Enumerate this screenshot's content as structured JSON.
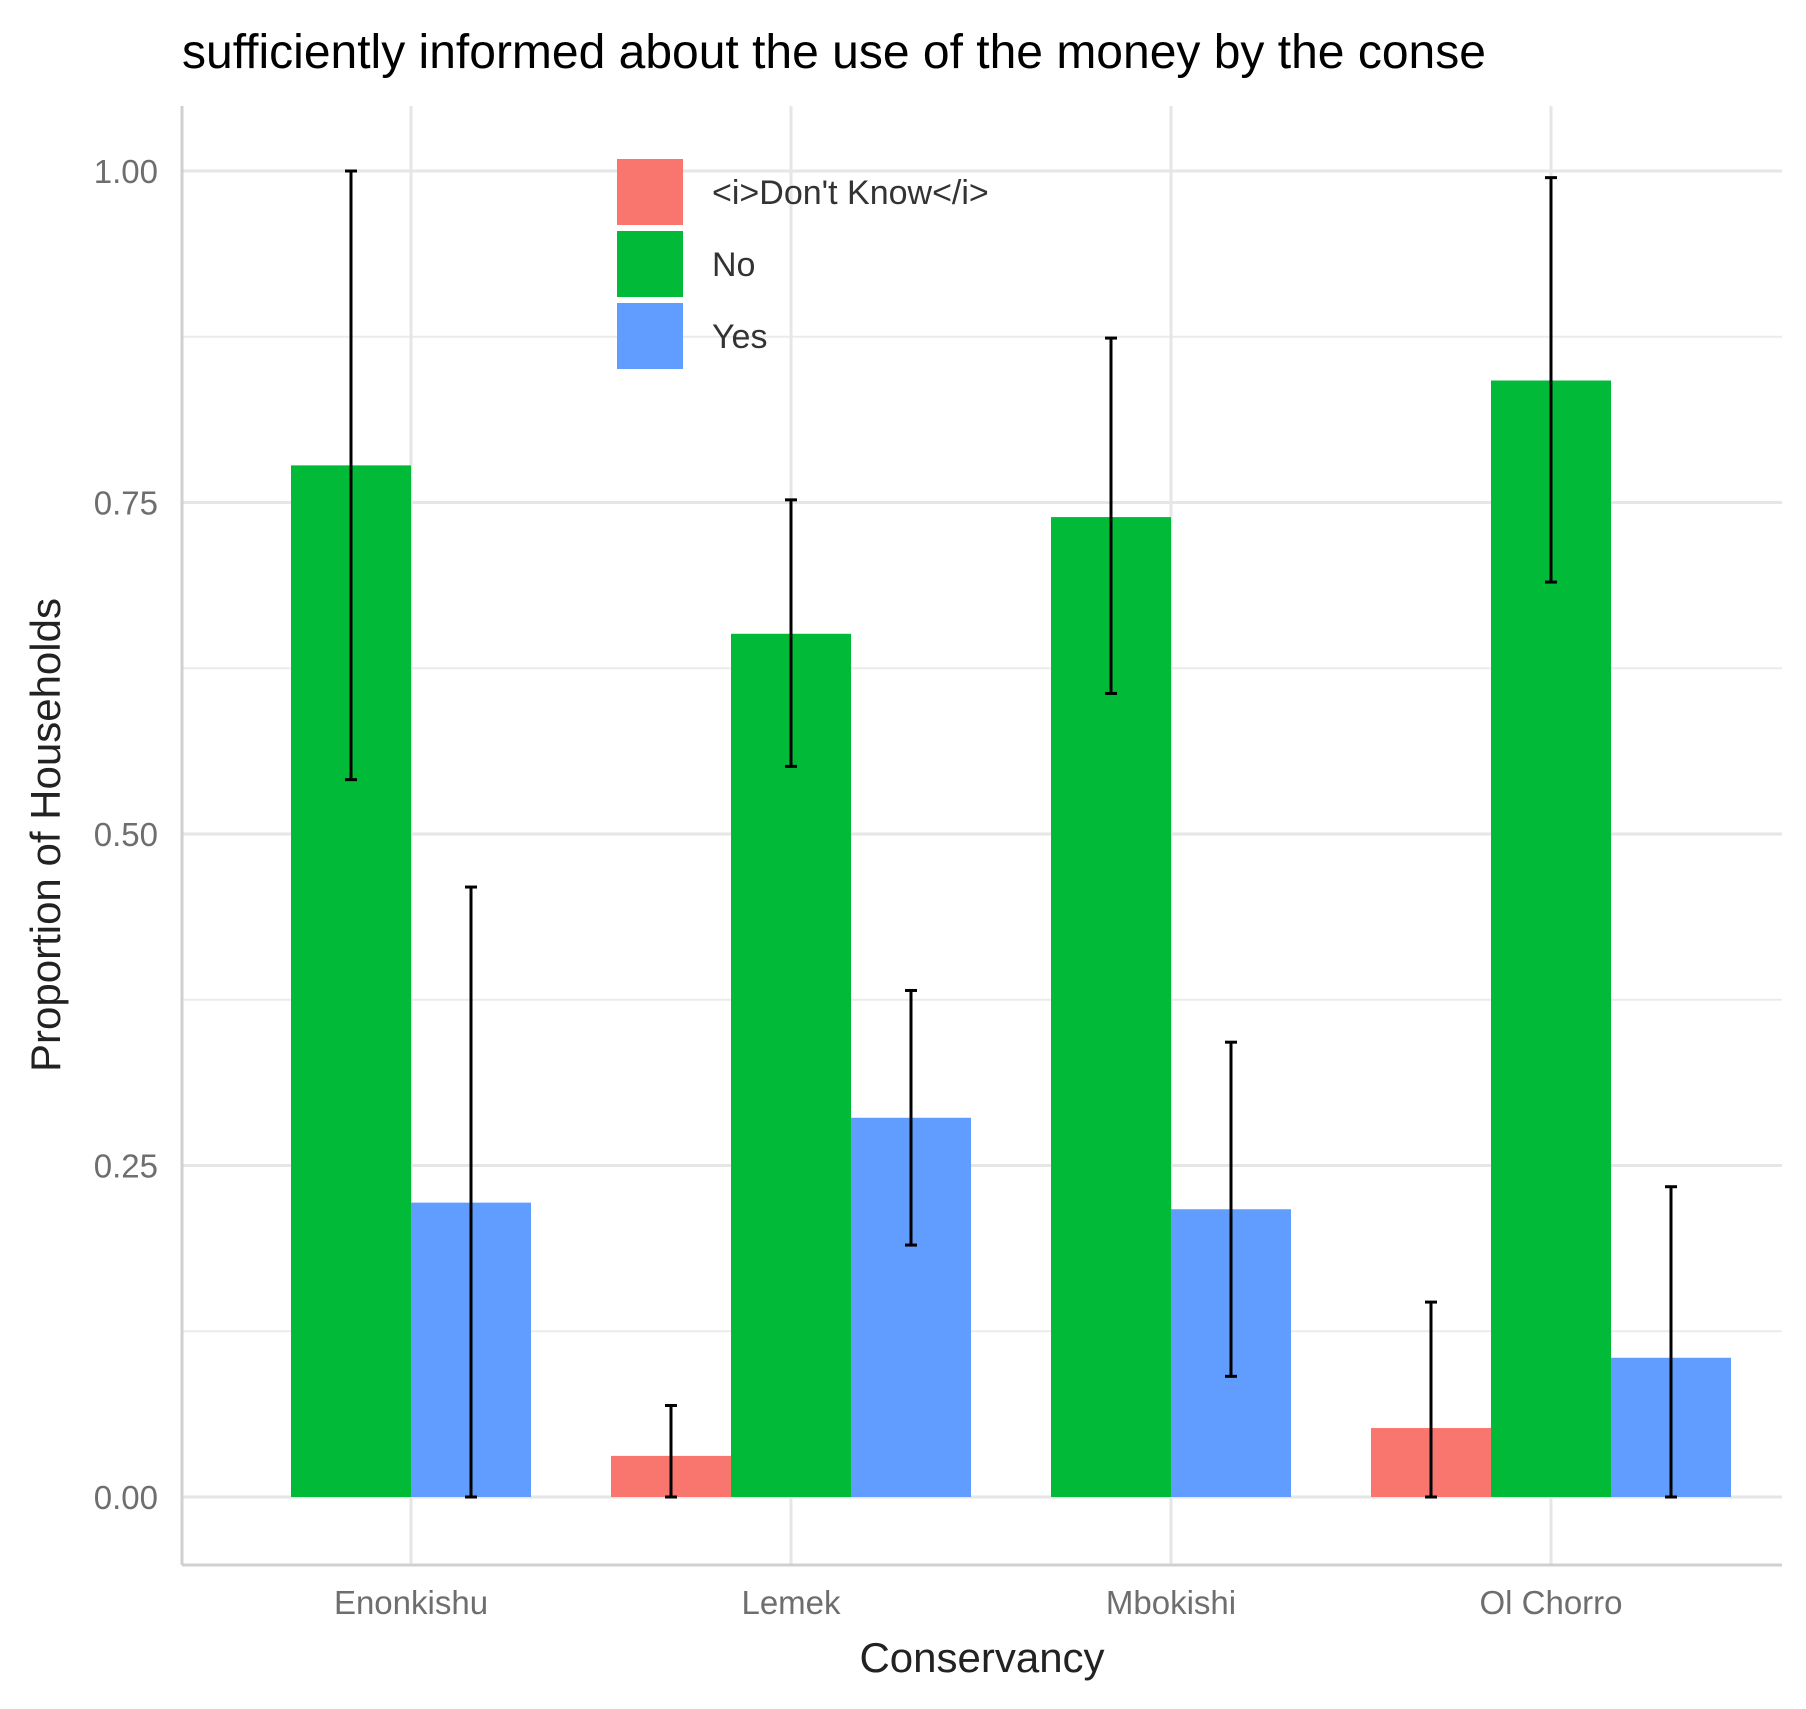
{
  "chart_data": {
    "type": "bar",
    "title": "sufficiently informed about the use of the money by the conse",
    "xlabel": "Conservancy",
    "ylabel": "Proportion of Households",
    "categories": [
      "Enonkishu",
      "Lemek",
      "Mbokishi",
      "Ol Chorro"
    ],
    "ylim": [
      -0.05,
      1.05
    ],
    "yticks": [
      0.0,
      0.25,
      0.5,
      0.75,
      1.0
    ],
    "ytick_labels": [
      "0.00",
      "0.25",
      "0.50",
      "0.75",
      "1.00"
    ],
    "grid": true,
    "legend_position": "top-center",
    "series": [
      {
        "name": "<i>Don't Know</i>",
        "color": "#F8766D",
        "values": [
          null,
          0.031,
          null,
          0.052
        ],
        "error_low": [
          null,
          0.0,
          null,
          0.0
        ],
        "error_high": [
          null,
          0.069,
          null,
          0.147
        ]
      },
      {
        "name": "No",
        "color": "#00BA38",
        "values": [
          0.778,
          0.651,
          0.739,
          0.842
        ],
        "error_low": [
          0.541,
          0.551,
          0.606,
          0.69
        ],
        "error_high": [
          1.0,
          0.752,
          0.874,
          0.995
        ]
      },
      {
        "name": "Yes",
        "color": "#619CFF",
        "values": [
          0.222,
          0.286,
          0.217,
          0.105
        ],
        "error_low": [
          0.0,
          0.19,
          0.091,
          0.0
        ],
        "error_high": [
          0.46,
          0.382,
          0.343,
          0.234
        ]
      }
    ]
  }
}
